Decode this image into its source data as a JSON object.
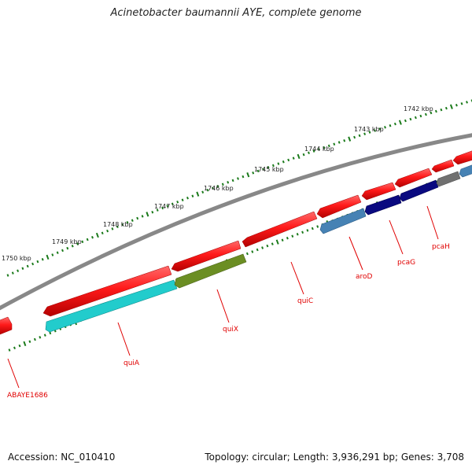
{
  "title": "Acinetobacter baumannii AYE, complete genome",
  "accession": "Accession: NC_010410",
  "stats": "Topology: circular; Length: 3,936,291 bp; Genes: 3,708",
  "scale_labels": [
    "1742 kbp",
    "1743 kbp",
    "1744 kbp",
    "1745 kbp",
    "1746 kbp",
    "1747 kbp",
    "1748 kbp",
    "1749 kbp",
    "1750 kbp"
  ],
  "gene_labels": [
    "pcaH",
    "pcaG",
    "aroD",
    "quiC",
    "quiX",
    "quiA",
    "ABAYE1686"
  ],
  "colors": {
    "cds_forward": "#ee1111",
    "cds_reverse_cyan": "#22cccc",
    "cds_reverse_olive": "#6b8e23",
    "cds_reverse_steel": "#4682b4",
    "cds_reverse_navy": "#0a0a80",
    "cds_reverse_gray": "#707070",
    "backbone": "#888888",
    "scale": "#1a7a1a",
    "label": "#e00000"
  }
}
